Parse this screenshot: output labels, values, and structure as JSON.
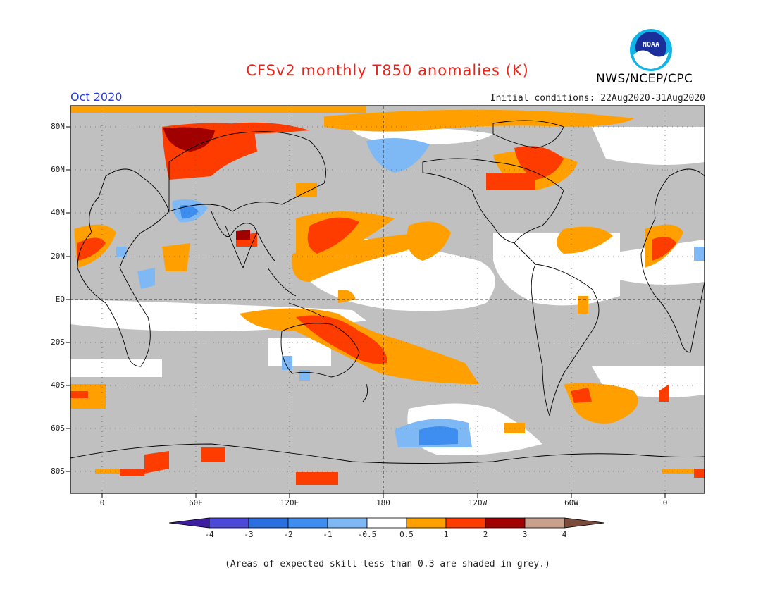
{
  "header": {
    "title": "CFSv2 monthly T850 anomalies (K)",
    "month": "Oct 2020",
    "initial_conditions": "Initial conditions: 22Aug2020-31Aug2020",
    "organization": "NWS/NCEP/CPC",
    "logo_text": "NOAA"
  },
  "map": {
    "lat_ticks": [
      "80N",
      "60N",
      "40N",
      "20N",
      "EQ",
      "20S",
      "40S",
      "60S",
      "80S"
    ],
    "lon_ticks": [
      "0",
      "60E",
      "120E",
      "180",
      "120W",
      "60W",
      "0"
    ],
    "colors": {
      "no_skill_grey": "#c0c0c0",
      "neutral_white": "#ffffff",
      "warm_05_1": "#ff9f00",
      "warm_1_2": "#ff3c00",
      "warm_2_3": "#a00000",
      "cool_05": "#7fb9f5",
      "cool_1": "#3d8ef0"
    }
  },
  "colorbar": {
    "labels": [
      "-4",
      "-3",
      "-2",
      "-1",
      "-0.5",
      "0.5",
      "1",
      "2",
      "3",
      "4"
    ],
    "colors": [
      "#3c1e9e",
      "#4b49d8",
      "#2a6fe0",
      "#3d8ef0",
      "#7fb9f5",
      "#ffffff",
      "#ff9f00",
      "#ff3c00",
      "#a00000",
      "#c8a08c",
      "#7a4a3a"
    ]
  },
  "footnote": "(Areas of expected skill less than 0.3 are shaded in grey.)"
}
